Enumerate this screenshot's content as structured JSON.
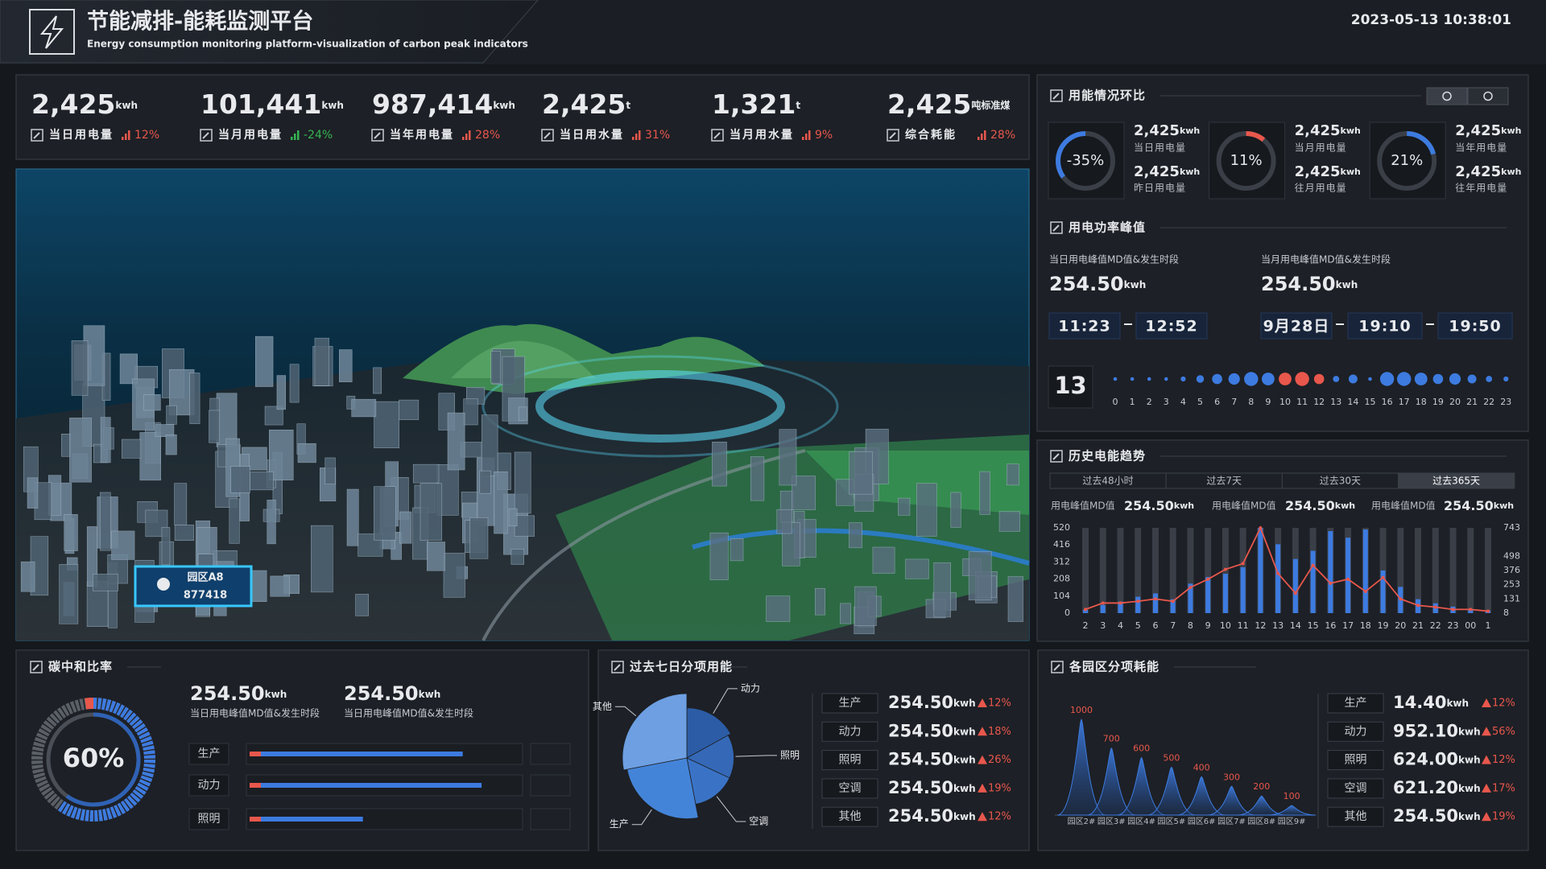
{
  "header": {
    "title": "节能减排-能耗监测平台",
    "subtitle": "Energy consumption monitoring platform-visualization of carbon peak indicators",
    "datetime": "2023-05-13 10:38:01"
  },
  "kpis": [
    {
      "value": "2,425",
      "unit": "kwh",
      "label": "当日用电量",
      "change": "12%"
    },
    {
      "value": "101,441",
      "unit": "kwh",
      "label": "当月用电量",
      "change": "-24%"
    },
    {
      "value": "987,414",
      "unit": "kwh",
      "label": "当年用电量",
      "change": "28%"
    },
    {
      "value": "2,425",
      "unit": "t",
      "label": "当日用水量",
      "change": "31%"
    },
    {
      "value": "1,321",
      "unit": "t",
      "label": "当月用水量",
      "change": "9%"
    },
    {
      "value": "2,425",
      "unit": "吨标准煤",
      "label": "综合耗能",
      "change": "28%"
    }
  ],
  "map": {
    "markers": [
      {
        "name": "园区A8",
        "code": "877418"
      }
    ]
  },
  "comparison": {
    "title": "用能情况环比",
    "gauges": [
      {
        "value": -35,
        "value_label": "-35%",
        "color": "#3d7be0",
        "items": [
          {
            "value": "2,425",
            "unit": "kwh",
            "label": "当日用电量"
          },
          {
            "value": "2,425",
            "unit": "kwh",
            "label": "昨日用电量"
          }
        ]
      },
      {
        "value": 11,
        "value_label": "11%",
        "color": "#e8574c",
        "items": [
          {
            "value": "2,425",
            "unit": "kwh",
            "label": "当月用电量"
          },
          {
            "value": "2,425",
            "unit": "kwh",
            "label": "往月用电量"
          }
        ]
      },
      {
        "value": 21,
        "value_label": "21%",
        "color": "#3d7be0",
        "items": [
          {
            "value": "2,425",
            "unit": "kwh",
            "label": "当年用电量"
          },
          {
            "value": "2,425",
            "unit": "kwh",
            "label": "往年用电量"
          }
        ]
      }
    ]
  },
  "peak": {
    "title": "用电功率峰值",
    "blocks": [
      {
        "label": "当日用电峰值MD值&发生时段",
        "value": "254.50",
        "unit": "kwh",
        "times": [
          "11:23",
          "12:52"
        ]
      },
      {
        "label": "当月用电峰值MD值&发生时段",
        "value": "254.50",
        "unit": "kwh",
        "date": "9月28日",
        "times": [
          "19:10",
          "19:50"
        ]
      }
    ],
    "day": "13",
    "hours": {
      "type": "dot",
      "categories": [
        0,
        1,
        2,
        3,
        4,
        5,
        6,
        7,
        8,
        9,
        10,
        11,
        12,
        13,
        14,
        15,
        16,
        17,
        18,
        19,
        20,
        21,
        22,
        23
      ],
      "values": [
        1,
        1,
        1,
        1,
        2,
        4,
        6,
        7,
        9,
        8,
        8,
        9,
        6,
        3,
        5,
        1,
        9,
        9,
        8,
        6,
        7,
        5,
        3,
        2
      ],
      "colors": [
        "#3d7be0",
        "#3d7be0",
        "#3d7be0",
        "#3d7be0",
        "#3d7be0",
        "#3d7be0",
        "#3d7be0",
        "#3d7be0",
        "#3d7be0",
        "#3d7be0",
        "#e8574c",
        "#e8574c",
        "#e8574c",
        "#3d7be0",
        "#3d7be0",
        "#3d7be0",
        "#3d7be0",
        "#3d7be0",
        "#3d7be0",
        "#3d7be0",
        "#3d7be0",
        "#3d7be0",
        "#3d7be0",
        "#3d7be0"
      ]
    }
  },
  "history": {
    "title": "历史电能趋势",
    "tabs": [
      "过去48小时",
      "过去7天",
      "过去30天",
      "过去365天"
    ],
    "active_tab": 3,
    "stats": [
      {
        "label": "用电峰值MD值",
        "value": "254.50",
        "unit": "kwh"
      },
      {
        "label": "用电峰值MD值",
        "value": "254.50",
        "unit": "kwh"
      },
      {
        "label": "用电峰值MD值",
        "value": "254.50",
        "unit": "kwh"
      }
    ],
    "chart": {
      "type": "bar-line",
      "categories": [
        "2",
        "3",
        "4",
        "5",
        "6",
        "7",
        "8",
        "9",
        "10",
        "11",
        "12",
        "13",
        "14",
        "15",
        "16",
        "17",
        "18",
        "19",
        "20",
        "21",
        "22",
        "23",
        "00",
        "1"
      ],
      "ylim": [
        0,
        520
      ],
      "yticks": [
        0,
        104,
        208,
        312,
        416,
        520
      ],
      "y2lim": [
        8,
        743
      ],
      "y2ticks": [
        8,
        131,
        253,
        376,
        498,
        743
      ],
      "series": [
        {
          "type": "bar",
          "color": "#3d7be0",
          "values": [
            20,
            50,
            70,
            100,
            120,
            85,
            180,
            220,
            240,
            280,
            520,
            420,
            330,
            380,
            500,
            460,
            510,
            260,
            160,
            85,
            60,
            40,
            25,
            15
          ]
        },
        {
          "type": "line",
          "color": "#e8574c",
          "axis": "y2",
          "values": [
            40,
            95,
            95,
            110,
            130,
            110,
            230,
            300,
            385,
            435,
            743,
            350,
            180,
            420,
            265,
            300,
            195,
            315,
            130,
            75,
            60,
            40,
            40,
            25
          ]
        }
      ]
    }
  },
  "carbon": {
    "title": "碳中和比率",
    "ratio": {
      "value": 60,
      "value_label": "60%"
    },
    "stats": [
      {
        "value": "254.50",
        "unit": "kwh",
        "label": "当日用电峰值MD值&发生时段"
      },
      {
        "value": "254.50",
        "unit": "kwh",
        "label": "当日用电峰值MD值&发生时段"
      }
    ],
    "bars": {
      "type": "bar",
      "categories": [
        "生产",
        "动力",
        "照明"
      ],
      "values": [
        79,
        86,
        42
      ],
      "xlim": [
        0,
        100
      ],
      "color": "#3d7be0"
    }
  },
  "weekly": {
    "title": "过去七日分项用能",
    "pie": {
      "type": "pie",
      "categories": [
        "动力",
        "照明",
        "空调",
        "生产",
        "其他"
      ],
      "values": [
        17,
        15,
        15,
        25,
        28
      ],
      "colors": [
        "#2c5ca6",
        "#3568b6",
        "#3a73c6",
        "#4484d8",
        "#6d9fe2"
      ]
    },
    "table": [
      {
        "name": "生产",
        "value": "254.50",
        "unit": "kwh",
        "change": "12%"
      },
      {
        "name": "动力",
        "value": "254.50",
        "unit": "kwh",
        "change": "18%"
      },
      {
        "name": "照明",
        "value": "254.50",
        "unit": "kwh",
        "change": "26%"
      },
      {
        "name": "空调",
        "value": "254.50",
        "unit": "kwh",
        "change": "19%"
      },
      {
        "name": "其他",
        "value": "254.50",
        "unit": "kwh",
        "change": "12%"
      }
    ]
  },
  "parks": {
    "title": "各园区分项耗能",
    "chart": {
      "type": "area",
      "categories": [
        "园区2#",
        "园区3#",
        "园区4#",
        "园区5#",
        "园区6#",
        "园区7#",
        "园区8#",
        "园区9#"
      ],
      "values": [
        1000,
        700,
        600,
        500,
        400,
        300,
        200,
        100
      ],
      "color": "#3d7be0"
    },
    "table": [
      {
        "name": "生产",
        "value": "14.40",
        "unit": "kwh",
        "change": "12%"
      },
      {
        "name": "动力",
        "value": "952.10",
        "unit": "kwh",
        "change": "56%"
      },
      {
        "name": "照明",
        "value": "624.00",
        "unit": "kwh",
        "change": "12%"
      },
      {
        "name": "空调",
        "value": "621.20",
        "unit": "kwh",
        "change": "17%"
      },
      {
        "name": "其他",
        "value": "254.50",
        "unit": "kwh",
        "change": "19%"
      }
    ]
  }
}
